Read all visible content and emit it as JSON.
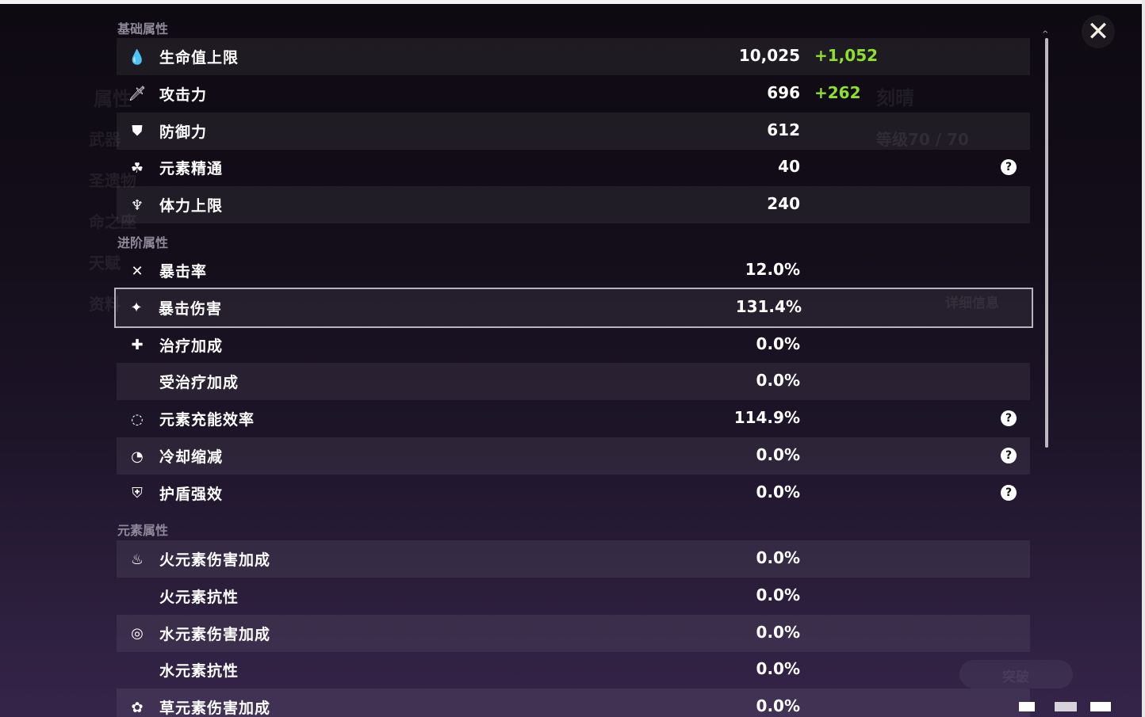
{
  "background": {
    "character_name": "刻晴",
    "level": "等级70 / 70",
    "detail_button": "详细信息",
    "ascend_button": "突破",
    "side_menu": [
      "属性",
      "武器",
      "圣遗物",
      "命之座",
      "天赋",
      "资料"
    ]
  },
  "sections": {
    "basic": "基础属性",
    "advanced": "进阶属性",
    "elemental": "元素属性"
  },
  "basic_rows": [
    {
      "icon": "hp-drop-icon",
      "label": "生命值上限",
      "value": "10,025",
      "bonus": "+1,052"
    },
    {
      "icon": "sword-icon",
      "label": "攻击力",
      "value": "696",
      "bonus": "+262"
    },
    {
      "icon": "shield-icon",
      "label": "防御力",
      "value": "612"
    },
    {
      "icon": "elemental-mastery-icon",
      "label": "元素精通",
      "value": "40",
      "help": "?"
    },
    {
      "icon": "stamina-icon",
      "label": "体力上限",
      "value": "240"
    }
  ],
  "advanced_rows": [
    {
      "icon": "crit-rate-icon",
      "label": "暴击率",
      "value": "12.0%"
    },
    {
      "icon": "crit-dmg-icon",
      "label": "暴击伤害",
      "value": "131.4%",
      "selected": true
    },
    {
      "icon": "healing-icon",
      "label": "治疗加成",
      "value": "0.0%"
    },
    {
      "label": "受治疗加成",
      "value": "0.0%"
    },
    {
      "icon": "energy-recharge-icon",
      "label": "元素充能效率",
      "value": "114.9%",
      "help": "?"
    },
    {
      "icon": "cd-reduction-icon",
      "label": "冷却缩减",
      "value": "0.0%",
      "help": "?"
    },
    {
      "icon": "shield-strength-icon",
      "label": "护盾强效",
      "value": "0.0%",
      "help": "?"
    }
  ],
  "elemental_rows": [
    {
      "icon": "pyro-icon",
      "label": "火元素伤害加成",
      "value": "0.0%"
    },
    {
      "label": "火元素抗性",
      "value": "0.0%"
    },
    {
      "icon": "hydro-icon",
      "label": "水元素伤害加成",
      "value": "0.0%"
    },
    {
      "label": "水元素抗性",
      "value": "0.0%"
    },
    {
      "icon": "dendro-icon",
      "label": "草元素伤害加成",
      "value": "0.0%"
    }
  ],
  "close_label": "✕",
  "colors": {
    "bonus": "#8ee02b",
    "selected_border": "#b8b4bf"
  }
}
